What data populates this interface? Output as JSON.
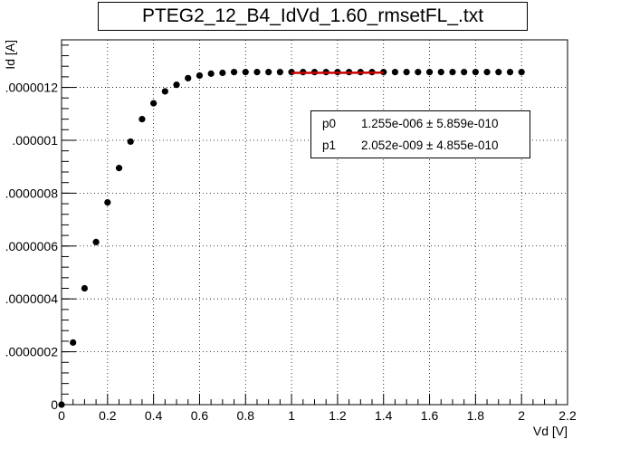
{
  "chart_data": {
    "type": "scatter",
    "title": "PTEG2_12_B4_IdVd_1.60_rmsetFL_.txt",
    "xlabel": "Vd [V]",
    "ylabel": "Id [A]",
    "xlim": [
      0,
      2.2
    ],
    "ylim": [
      0,
      1.38e-06
    ],
    "x_ticks": [
      0,
      0.2,
      0.4,
      0.6,
      0.8,
      1,
      1.2,
      1.4,
      1.6,
      1.8,
      2,
      2.2
    ],
    "x_tick_labels": [
      "0",
      "0.2",
      "0.4",
      "0.6",
      "0.8",
      "1",
      "1.2",
      "1.4",
      "1.6",
      "1.8",
      "2",
      "2.2"
    ],
    "y_ticks": [
      0,
      2e-07,
      4e-07,
      6e-07,
      8e-07,
      1e-06,
      1.2e-06
    ],
    "y_tick_labels": [
      "0",
      ".0000002",
      ".0000004",
      ".0000006",
      ".0000008",
      ".000001",
      ".0000012"
    ],
    "grid": true,
    "series": [
      {
        "marker_color": "#000000",
        "x": [
          0,
          0.05,
          0.1,
          0.15,
          0.2,
          0.25,
          0.3,
          0.35,
          0.4,
          0.45,
          0.5,
          0.55,
          0.6,
          0.65,
          0.7,
          0.75,
          0.8,
          0.85,
          0.9,
          0.95,
          1.0,
          1.05,
          1.1,
          1.15,
          1.2,
          1.25,
          1.3,
          1.35,
          1.4,
          1.45,
          1.5,
          1.55,
          1.6,
          1.65,
          1.7,
          1.75,
          1.8,
          1.85,
          1.9,
          1.95,
          2.0
        ],
        "y": [
          0,
          2.35e-07,
          4.4e-07,
          6.15e-07,
          7.65e-07,
          8.95e-07,
          9.95e-07,
          1.08e-06,
          1.14e-06,
          1.185e-06,
          1.21e-06,
          1.235e-06,
          1.245e-06,
          1.252e-06,
          1.255e-06,
          1.258e-06,
          1.258e-06,
          1.258e-06,
          1.258e-06,
          1.258e-06,
          1.258e-06,
          1.258e-06,
          1.258e-06,
          1.258e-06,
          1.258e-06,
          1.258e-06,
          1.258e-06,
          1.258e-06,
          1.258e-06,
          1.258e-06,
          1.258e-06,
          1.258e-06,
          1.258e-06,
          1.258e-06,
          1.258e-06,
          1.258e-06,
          1.258e-06,
          1.258e-06,
          1.258e-06,
          1.258e-06,
          1.258e-06
        ]
      }
    ],
    "fit": {
      "color": "#cc0000",
      "x_range": [
        1.0,
        1.4
      ],
      "p0": 1.255e-06,
      "p1": 2.052e-09,
      "x_offset": 1.0
    },
    "stats": [
      {
        "name": "p0",
        "value": "1.255e-006 ± 5.859e-010"
      },
      {
        "name": "p1",
        "value": "2.052e-009 ± 4.855e-010"
      }
    ]
  }
}
